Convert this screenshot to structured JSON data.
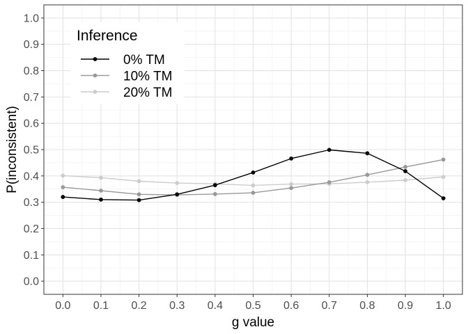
{
  "chart_data": {
    "type": "line",
    "title": "",
    "xlabel": "g value",
    "ylabel": "P(inconsistent)",
    "x": [
      0.0,
      0.1,
      0.2,
      0.3,
      0.4,
      0.5,
      0.6,
      0.7,
      0.8,
      0.9,
      1.0
    ],
    "x_tick_labels": [
      "0.0",
      "0.1",
      "0.2",
      "0.3",
      "0.4",
      "0.5",
      "0.6",
      "0.7",
      "0.8",
      "0.9",
      "1.0"
    ],
    "y_tick_labels": [
      "0.0",
      "0.1",
      "0.2",
      "0.3",
      "0.4",
      "0.5",
      "0.6",
      "0.7",
      "0.8",
      "0.9",
      "1.0"
    ],
    "xlim": [
      -0.05,
      1.05
    ],
    "ylim": [
      -0.05,
      1.05
    ],
    "grid": true,
    "legend": {
      "title": "Inference",
      "placement": "top-left"
    },
    "series": [
      {
        "name": "0% TM",
        "color": "#000000",
        "values": [
          0.32,
          0.31,
          0.308,
          0.33,
          0.365,
          0.413,
          0.466,
          0.499,
          0.486,
          0.418,
          0.315
        ]
      },
      {
        "name": "10% TM",
        "color": "#999999",
        "values": [
          0.357,
          0.344,
          0.33,
          0.328,
          0.331,
          0.336,
          0.354,
          0.376,
          0.404,
          0.434,
          0.462
        ]
      },
      {
        "name": "20% TM",
        "color": "#cccccc",
        "values": [
          0.401,
          0.393,
          0.38,
          0.373,
          0.37,
          0.364,
          0.369,
          0.37,
          0.376,
          0.384,
          0.396
        ]
      }
    ]
  }
}
